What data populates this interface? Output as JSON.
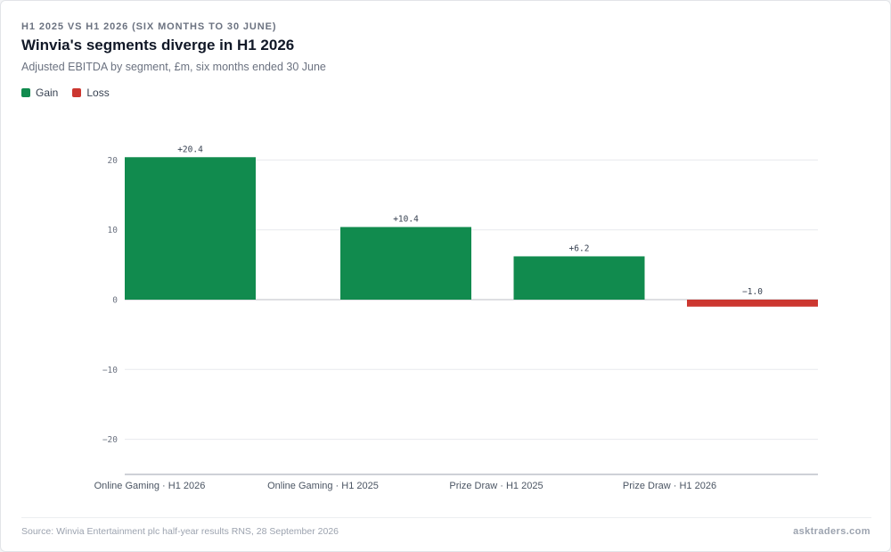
{
  "header": {
    "eyebrow": "H1 2025 VS H1 2026 (SIX MONTHS TO 30 JUNE)",
    "title": "Winvia's segments diverge in H1 2026",
    "subtitle": "Adjusted EBITDA by segment, £m, six months ended 30 June"
  },
  "legend": {
    "items": [
      {
        "label": "Gain",
        "color": "#118b4e"
      },
      {
        "label": "Loss",
        "color": "#cc3730"
      }
    ]
  },
  "chart_data": {
    "type": "bar",
    "categories": [
      "Online Gaming · H1 2026",
      "Online Gaming · H1 2025",
      "Prize Draw · H1 2025",
      "Prize Draw · H1 2026"
    ],
    "values": [
      20.4,
      10.4,
      6.2,
      -1.0
    ],
    "value_labels": [
      "+20.4",
      "+10.4",
      "+6.2",
      "−1.0"
    ],
    "ylim": [
      -25,
      25
    ],
    "yticks": [
      20,
      10,
      0,
      -10,
      -20
    ],
    "ytick_labels": [
      "20",
      "10",
      "0",
      "−10",
      "−20"
    ],
    "grid": true,
    "legend_placement": "top-left",
    "colors": {
      "gain": "#118b4e",
      "loss": "#cc3730"
    }
  },
  "footer": {
    "source": "Source: Winvia Entertainment plc half-year results RNS, 28 September 2026",
    "brand": "asktraders.com"
  }
}
